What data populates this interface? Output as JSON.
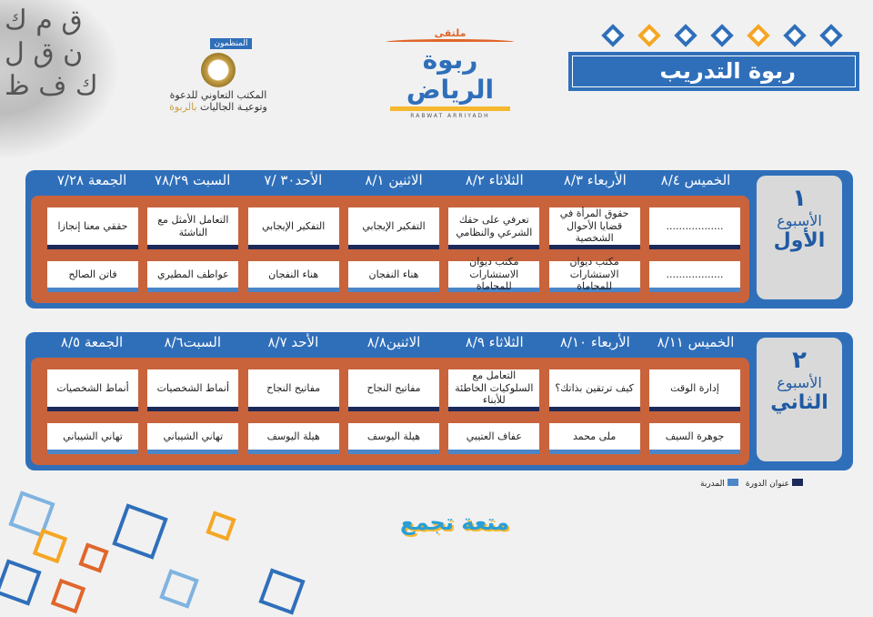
{
  "banner_title": "ربوة التدريب",
  "organizers": {
    "badge": "المنظمون",
    "line1": "المكتب التعاوني للدعوة",
    "line2_a": "وتوعيـة الجاليات ",
    "line2_b": "بالربوة"
  },
  "logo": {
    "top": "ملتقى",
    "main": "ربوة الرياض",
    "latin": "RABWAT ARRIYADH"
  },
  "bottom_logo": "متعة تجمع",
  "colors": {
    "blue": "#2f6fba",
    "orange": "#c8633c",
    "navy": "#1c2a5a",
    "light_blue": "#4a86c8"
  },
  "weeks": [
    {
      "num": "١",
      "label_a": "الأسبوع",
      "label_b": "الأول",
      "days": [
        "الجمعة ٧/٢٨",
        "السبت ٧٨/٢٩",
        "الأحد٣٠ /٧",
        "الاثنين ٨/١",
        "الثلاثاء ٨/٢",
        "الأربعاء ٨/٣",
        "الخميس ٨/٤"
      ],
      "titles": [
        "..................",
        "حقوق المرأة في قضايا الأحوال الشخصية",
        "تعرفي على حقك الشرعي والنظامي",
        "التفكير الإيجابي",
        "التفكير الإيجابي",
        "التعامل الأمثل مع الناشئة",
        "حققي معنا إنجازا"
      ],
      "trainers": [
        "..................",
        "مكتب ديوان الاستشارات للمحاماة",
        "مكتب ديوان الاستشارات للمحاماة",
        "هناء النفجان",
        "هناء النفجان",
        "عواطف المطيري",
        "فاتن الصالح"
      ]
    },
    {
      "num": "٢",
      "label_a": "الأسبوع",
      "label_b": "الثاني",
      "days": [
        "الجمعة ٨/٥",
        "السبت٨/٦",
        "الأحد ٨/٧",
        "الاثنين٨/٨",
        "الثلاثاء ٨/٩",
        "الأربعاء ٨/١٠",
        "الخميس ٨/١١"
      ],
      "titles": [
        "إدارة الوقت",
        "كيف ترتقين بذاتك؟",
        "التعامل مع السلوكيات الخاطئة للأبناء",
        "مفاتيح النجاح",
        "مفاتيح النجاح",
        "أنماط الشخصيات",
        "أنماط الشخصيات"
      ],
      "trainers": [
        "جوهرة السيف",
        "ملى محمد",
        "عفاف العتيبي",
        "هيلة اليوسف",
        "هيلة اليوسف",
        "تهاني الشيباني",
        "تهاني الشيباني"
      ]
    }
  ],
  "legend": [
    {
      "label": "عنوان الدورة",
      "color": "#1c2a5a"
    },
    {
      "label": "المدربة",
      "color": "#4a86c8"
    }
  ]
}
